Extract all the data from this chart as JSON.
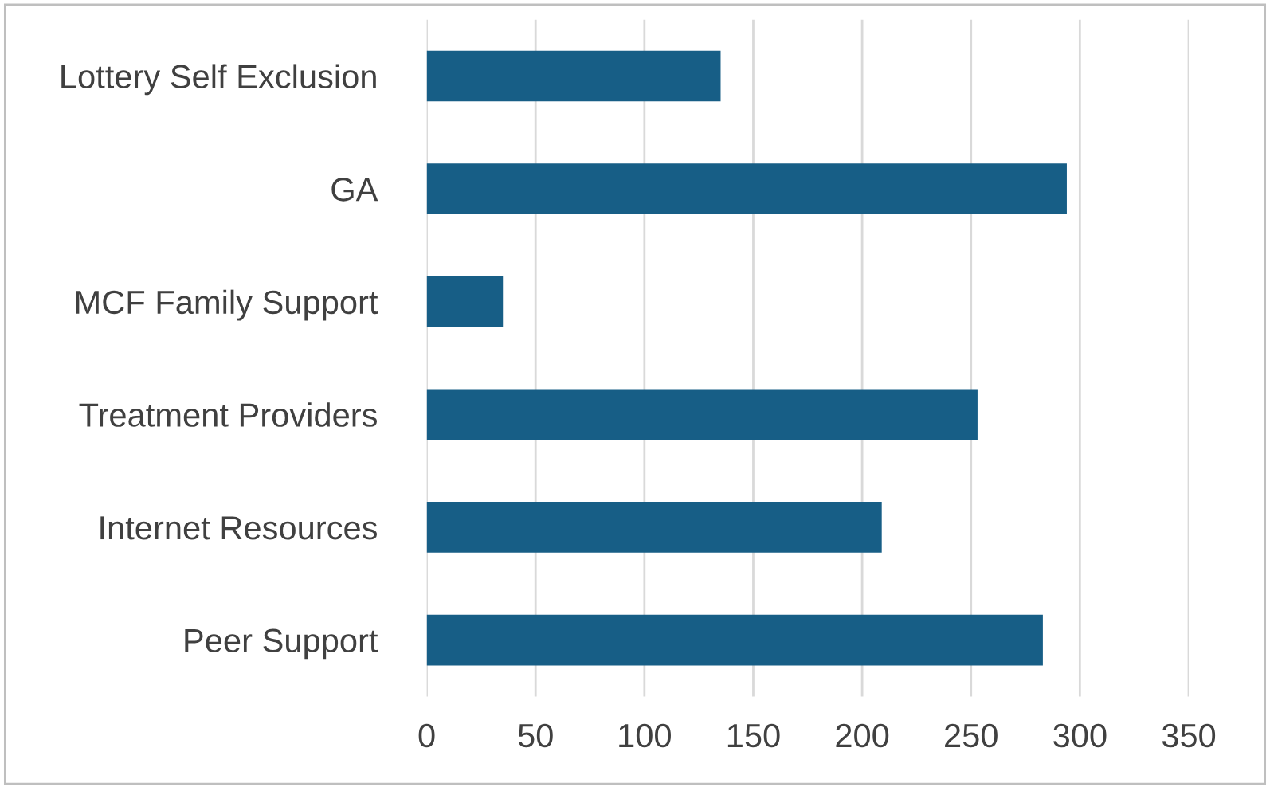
{
  "chart_data": {
    "type": "bar",
    "orientation": "horizontal",
    "categories": [
      "Lottery Self Exclusion",
      "GA",
      "MCF Family Support",
      "Treatment Providers",
      "Internet Resources",
      "Peer Support"
    ],
    "values": [
      135,
      294,
      35,
      253,
      209,
      283
    ],
    "color": "#175e86",
    "xlim": [
      0,
      350
    ],
    "xticks": [
      0,
      50,
      100,
      150,
      200,
      250,
      300,
      350
    ],
    "grid": "x",
    "legend": false
  }
}
